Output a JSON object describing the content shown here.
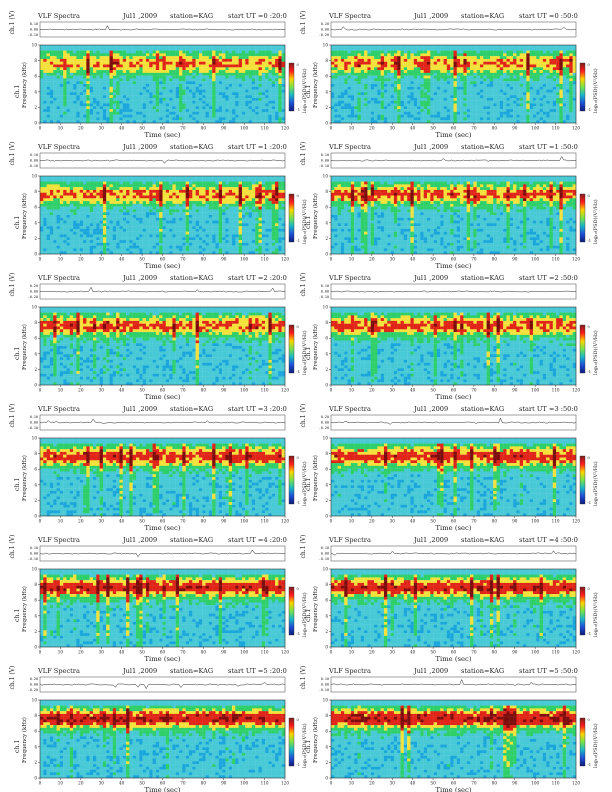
{
  "page": {
    "header_left": "VLF Spectra",
    "header_date": "Jul1 ,2009",
    "header_station": "station=KAG",
    "header_start_prefix": "start  UT",
    "panel_label": "ch.1",
    "xlabel": "Time  (sec)",
    "ylabel": "Frequency  (kHz)",
    "waveform_label": "ch.1 (V)",
    "colorbar_label": "log₁₀(PSD)(V²/Hz)",
    "waveform_ticks": [
      "0.10",
      "0.00",
      "-0.10"
    ],
    "waveform_ticks_alt": [
      "0.20",
      "0.00",
      "-0.20"
    ],
    "colorbar_ticks": [
      "0",
      "-1"
    ]
  },
  "colors": {
    "background_low": "#48c9d6",
    "low_mid": "#1aa6dc",
    "green": "#2fcf6a",
    "yellow": "#f4e23b",
    "red": "#e02418",
    "dark_red": "#7d0c0c",
    "colorbar_stops": [
      "#7f1d1d",
      "#ff1b1b",
      "#ffd400",
      "#77e34a",
      "#18b7c8",
      "#1d4fd8",
      "#0d1a7a"
    ]
  },
  "chart_data": [
    {
      "type": "heatmap",
      "title": "VLF Spectra",
      "date": "Jul1 ,2009",
      "station": "station=KAG",
      "start_ut": "=0 :20:0",
      "xlabel": "Time  (sec)",
      "ylabel": "Frequency  (kHz)",
      "xticks": [
        "0",
        "10",
        "20",
        "30",
        "40",
        "50",
        "60",
        "70",
        "80",
        "90",
        "100",
        "110",
        "120"
      ],
      "yticks": [
        "0",
        "2",
        "4",
        "6",
        "8",
        "10"
      ],
      "xlim": [
        0,
        120
      ],
      "ylim": [
        0,
        10
      ]
    },
    {
      "type": "heatmap",
      "title": "VLF Spectra",
      "date": "Jul1 ,2009",
      "station": "station=KAG",
      "start_ut": "=0 :50:0",
      "xlabel": "Time  (sec)",
      "ylabel": "Frequency  (kHz)",
      "xticks": [
        "0",
        "10",
        "20",
        "30",
        "40",
        "50",
        "60",
        "70",
        "80",
        "90",
        "100",
        "110",
        "120"
      ],
      "yticks": [
        "0",
        "2",
        "4",
        "6",
        "8",
        "10"
      ],
      "xlim": [
        0,
        120
      ],
      "ylim": [
        0,
        10
      ]
    },
    {
      "type": "heatmap",
      "title": "VLF Spectra",
      "date": "Jul1 ,2009",
      "station": "station=KAG",
      "start_ut": "=1 :20:0",
      "xlabel": "Time  (sec)",
      "ylabel": "Frequency  (kHz)",
      "xticks": [
        "0",
        "10",
        "20",
        "30",
        "40",
        "50",
        "60",
        "70",
        "80",
        "90",
        "100",
        "110",
        "120"
      ],
      "yticks": [
        "0",
        "2",
        "4",
        "6",
        "8",
        "10"
      ],
      "xlim": [
        0,
        120
      ],
      "ylim": [
        0,
        10
      ]
    },
    {
      "type": "heatmap",
      "title": "VLF Spectra",
      "date": "Jul1 ,2009",
      "station": "station=KAG",
      "start_ut": "=1 :50:0",
      "xlabel": "Time  (sec)",
      "ylabel": "Frequency  (kHz)",
      "xticks": [
        "0",
        "10",
        "20",
        "30",
        "40",
        "50",
        "60",
        "70",
        "80",
        "90",
        "100",
        "110",
        "120"
      ],
      "yticks": [
        "0",
        "2",
        "4",
        "6",
        "8",
        "10"
      ],
      "xlim": [
        0,
        120
      ],
      "ylim": [
        0,
        10
      ]
    },
    {
      "type": "heatmap",
      "title": "VLF Spectra",
      "date": "Jul1 ,2009",
      "station": "station=KAG",
      "start_ut": "=2 :20:0",
      "xlabel": "Time  (sec)",
      "ylabel": "Frequency  (kHz)",
      "xticks": [
        "0",
        "10",
        "20",
        "30",
        "40",
        "50",
        "60",
        "70",
        "80",
        "90",
        "100",
        "110",
        "120"
      ],
      "yticks": [
        "0",
        "2",
        "4",
        "6",
        "8",
        "10"
      ],
      "xlim": [
        0,
        120
      ],
      "ylim": [
        0,
        10
      ]
    },
    {
      "type": "heatmap",
      "title": "VLF Spectra",
      "date": "Jul1 ,2009",
      "station": "station=KAG",
      "start_ut": "=2 :50:0",
      "xlabel": "Time  (sec)",
      "ylabel": "Frequency  (kHz)",
      "xticks": [
        "0",
        "10",
        "20",
        "30",
        "40",
        "50",
        "60",
        "70",
        "80",
        "90",
        "100",
        "110",
        "120"
      ],
      "yticks": [
        "0",
        "2",
        "4",
        "6",
        "8",
        "10"
      ],
      "xlim": [
        0,
        120
      ],
      "ylim": [
        0,
        10
      ]
    },
    {
      "type": "heatmap",
      "title": "VLF Spectra",
      "date": "Jul1 ,2009",
      "station": "station=KAG",
      "start_ut": "=3 :20:0",
      "xlabel": "Time  (sec)",
      "ylabel": "Frequency  (kHz)",
      "xticks": [
        "0",
        "10",
        "20",
        "30",
        "40",
        "50",
        "60",
        "70",
        "80",
        "90",
        "100",
        "110",
        "120"
      ],
      "yticks": [
        "0",
        "2",
        "4",
        "6",
        "8",
        "10"
      ],
      "xlim": [
        0,
        120
      ],
      "ylim": [
        0,
        10
      ]
    },
    {
      "type": "heatmap",
      "title": "VLF Spectra",
      "date": "Jul1 ,2009",
      "station": "station=KAG",
      "start_ut": "=3 :50:0",
      "xlabel": "Time  (sec)",
      "ylabel": "Frequency  (kHz)",
      "xticks": [
        "0",
        "10",
        "20",
        "30",
        "40",
        "50",
        "60",
        "70",
        "80",
        "90",
        "100",
        "110",
        "120"
      ],
      "yticks": [
        "0",
        "2",
        "4",
        "6",
        "8",
        "10"
      ],
      "xlim": [
        0,
        120
      ],
      "ylim": [
        0,
        10
      ]
    },
    {
      "type": "heatmap",
      "title": "VLF Spectra",
      "date": "Jul1 ,2009",
      "station": "station=KAG",
      "start_ut": "=4 :20:0",
      "xlabel": "Time  (sec)",
      "ylabel": "Frequency  (kHz)",
      "xticks": [
        "0",
        "10",
        "20",
        "30",
        "40",
        "50",
        "60",
        "70",
        "80",
        "90",
        "100",
        "110",
        "120"
      ],
      "yticks": [
        "0",
        "2",
        "4",
        "6",
        "8",
        "10"
      ],
      "xlim": [
        0,
        120
      ],
      "ylim": [
        0,
        10
      ]
    },
    {
      "type": "heatmap",
      "title": "VLF Spectra",
      "date": "Jul1 ,2009",
      "station": "station=KAG",
      "start_ut": "=4 :50:0",
      "xlabel": "Time  (sec)",
      "ylabel": "Frequency  (kHz)",
      "xticks": [
        "0",
        "10",
        "20",
        "30",
        "40",
        "50",
        "60",
        "70",
        "80",
        "90",
        "100",
        "110",
        "120"
      ],
      "yticks": [
        "0",
        "2",
        "4",
        "6",
        "8",
        "10"
      ],
      "xlim": [
        0,
        120
      ],
      "ylim": [
        0,
        10
      ]
    },
    {
      "type": "heatmap",
      "title": "VLF Spectra",
      "date": "Jul1 ,2009",
      "station": "station=KAG",
      "start_ut": "=5 :20:0",
      "xlabel": "Time  (sec)",
      "ylabel": "Frequency  (kHz)",
      "xticks": [
        "0",
        "10",
        "20",
        "30",
        "40",
        "50",
        "60",
        "70",
        "80",
        "90",
        "100",
        "110",
        "120"
      ],
      "yticks": [
        "0",
        "2",
        "4",
        "6",
        "8",
        "10"
      ],
      "xlim": [
        0,
        120
      ],
      "ylim": [
        0,
        10
      ]
    },
    {
      "type": "heatmap",
      "title": "VLF Spectra",
      "date": "Jul1 ,2009",
      "station": "station=KAG",
      "start_ut": "=5 :50:0",
      "xlabel": "Time  (sec)",
      "ylabel": "Frequency  (kHz)",
      "xticks": [
        "0",
        "10",
        "20",
        "30",
        "40",
        "50",
        "60",
        "70",
        "80",
        "90",
        "100",
        "110",
        "120"
      ],
      "yticks": [
        "0",
        "2",
        "4",
        "6",
        "8",
        "10"
      ],
      "xlim": [
        0,
        120
      ],
      "ylim": [
        0,
        10
      ]
    }
  ]
}
